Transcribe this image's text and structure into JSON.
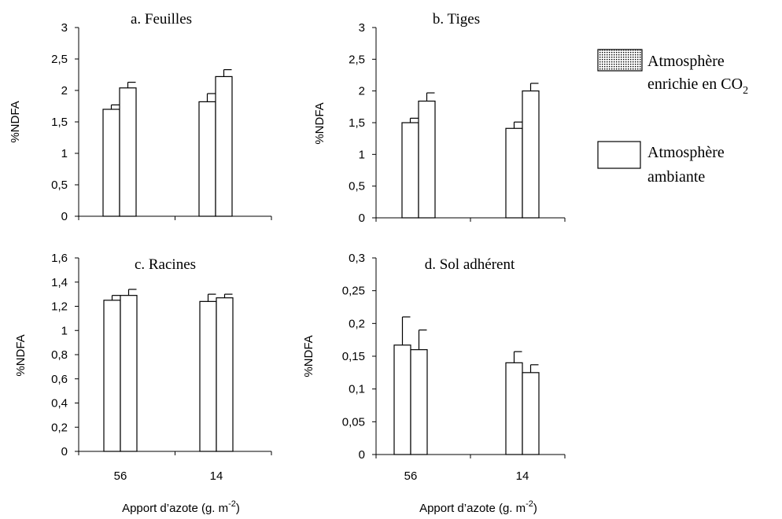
{
  "legend": {
    "items": [
      {
        "name": "Atmosphère enrichie en CO₂",
        "line1": "Atmosphère",
        "line2": "enrichie en CO",
        "sub": "2",
        "fill": "dotted"
      },
      {
        "name": "Atmosphère ambiante",
        "line1": "Atmosphère",
        "line2": "ambiante",
        "sub": "",
        "fill": "#ffffff"
      }
    ]
  },
  "chart_data": [
    {
      "type": "bar",
      "title": "a. Feuilles",
      "ylabel": "%NDFA",
      "xlabel": "",
      "categories": [
        "56",
        "14"
      ],
      "show_x_ticks": false,
      "ylim": [
        0,
        3
      ],
      "yticks": [
        "0",
        "0,5",
        "1",
        "1,5",
        "2",
        "2,5",
        "3"
      ],
      "yticks_values": [
        0,
        0.5,
        1,
        1.5,
        2,
        2.5,
        3
      ],
      "series": [
        {
          "values": [
            1.7,
            1.82
          ],
          "errors": [
            0.07,
            0.13
          ]
        },
        {
          "values": [
            2.04,
            2.22
          ],
          "errors": [
            0.09,
            0.11
          ]
        }
      ]
    },
    {
      "type": "bar",
      "title": "b. Tiges",
      "ylabel": "%NDFA",
      "xlabel": "",
      "categories": [
        "56",
        "14"
      ],
      "show_x_ticks": false,
      "ylim": [
        0,
        3
      ],
      "yticks": [
        "0",
        "0,5",
        "1",
        "1,5",
        "2",
        "2,5",
        "3"
      ],
      "yticks_values": [
        0,
        0.5,
        1,
        1.5,
        2,
        2.5,
        3
      ],
      "series": [
        {
          "values": [
            1.5,
            1.41
          ],
          "errors": [
            0.07,
            0.1
          ]
        },
        {
          "values": [
            1.84,
            2.0
          ],
          "errors": [
            0.13,
            0.12
          ]
        }
      ]
    },
    {
      "type": "bar",
      "title": "c. Racines",
      "ylabel": "%NDFA",
      "xlabel": "Apport d’azote (g. m",
      "xlabel_sup": "-2",
      "xlabel_end": ")",
      "categories": [
        "56",
        "14"
      ],
      "show_x_ticks": true,
      "ylim": [
        0,
        1.6
      ],
      "yticks": [
        "0",
        "0,2",
        "0,4",
        "0,6",
        "0,8",
        "1",
        "1,2",
        "1,4",
        "1,6"
      ],
      "yticks_values": [
        0,
        0.2,
        0.4,
        0.6,
        0.8,
        1,
        1.2,
        1.4,
        1.6
      ],
      "series": [
        {
          "values": [
            1.25,
            1.24
          ],
          "errors": [
            0.04,
            0.06
          ]
        },
        {
          "values": [
            1.29,
            1.27
          ],
          "errors": [
            0.05,
            0.03
          ]
        }
      ]
    },
    {
      "type": "bar",
      "title": "d. Sol adhérent",
      "ylabel": "%NDFA",
      "xlabel": "Apport d’azote (g. m",
      "xlabel_sup": "-2",
      "xlabel_end": ")",
      "categories": [
        "56",
        "14"
      ],
      "show_x_ticks": true,
      "ylim": [
        0,
        0.3
      ],
      "yticks": [
        "0",
        "0,05",
        "0,1",
        "0,15",
        "0,2",
        "0,25",
        "0,3"
      ],
      "yticks_values": [
        0,
        0.05,
        0.1,
        0.15,
        0.2,
        0.25,
        0.3
      ],
      "series": [
        {
          "values": [
            0.167,
            0.14
          ],
          "errors": [
            0.043,
            0.017
          ]
        },
        {
          "values": [
            0.16,
            0.125
          ],
          "errors": [
            0.03,
            0.012
          ]
        }
      ]
    }
  ]
}
